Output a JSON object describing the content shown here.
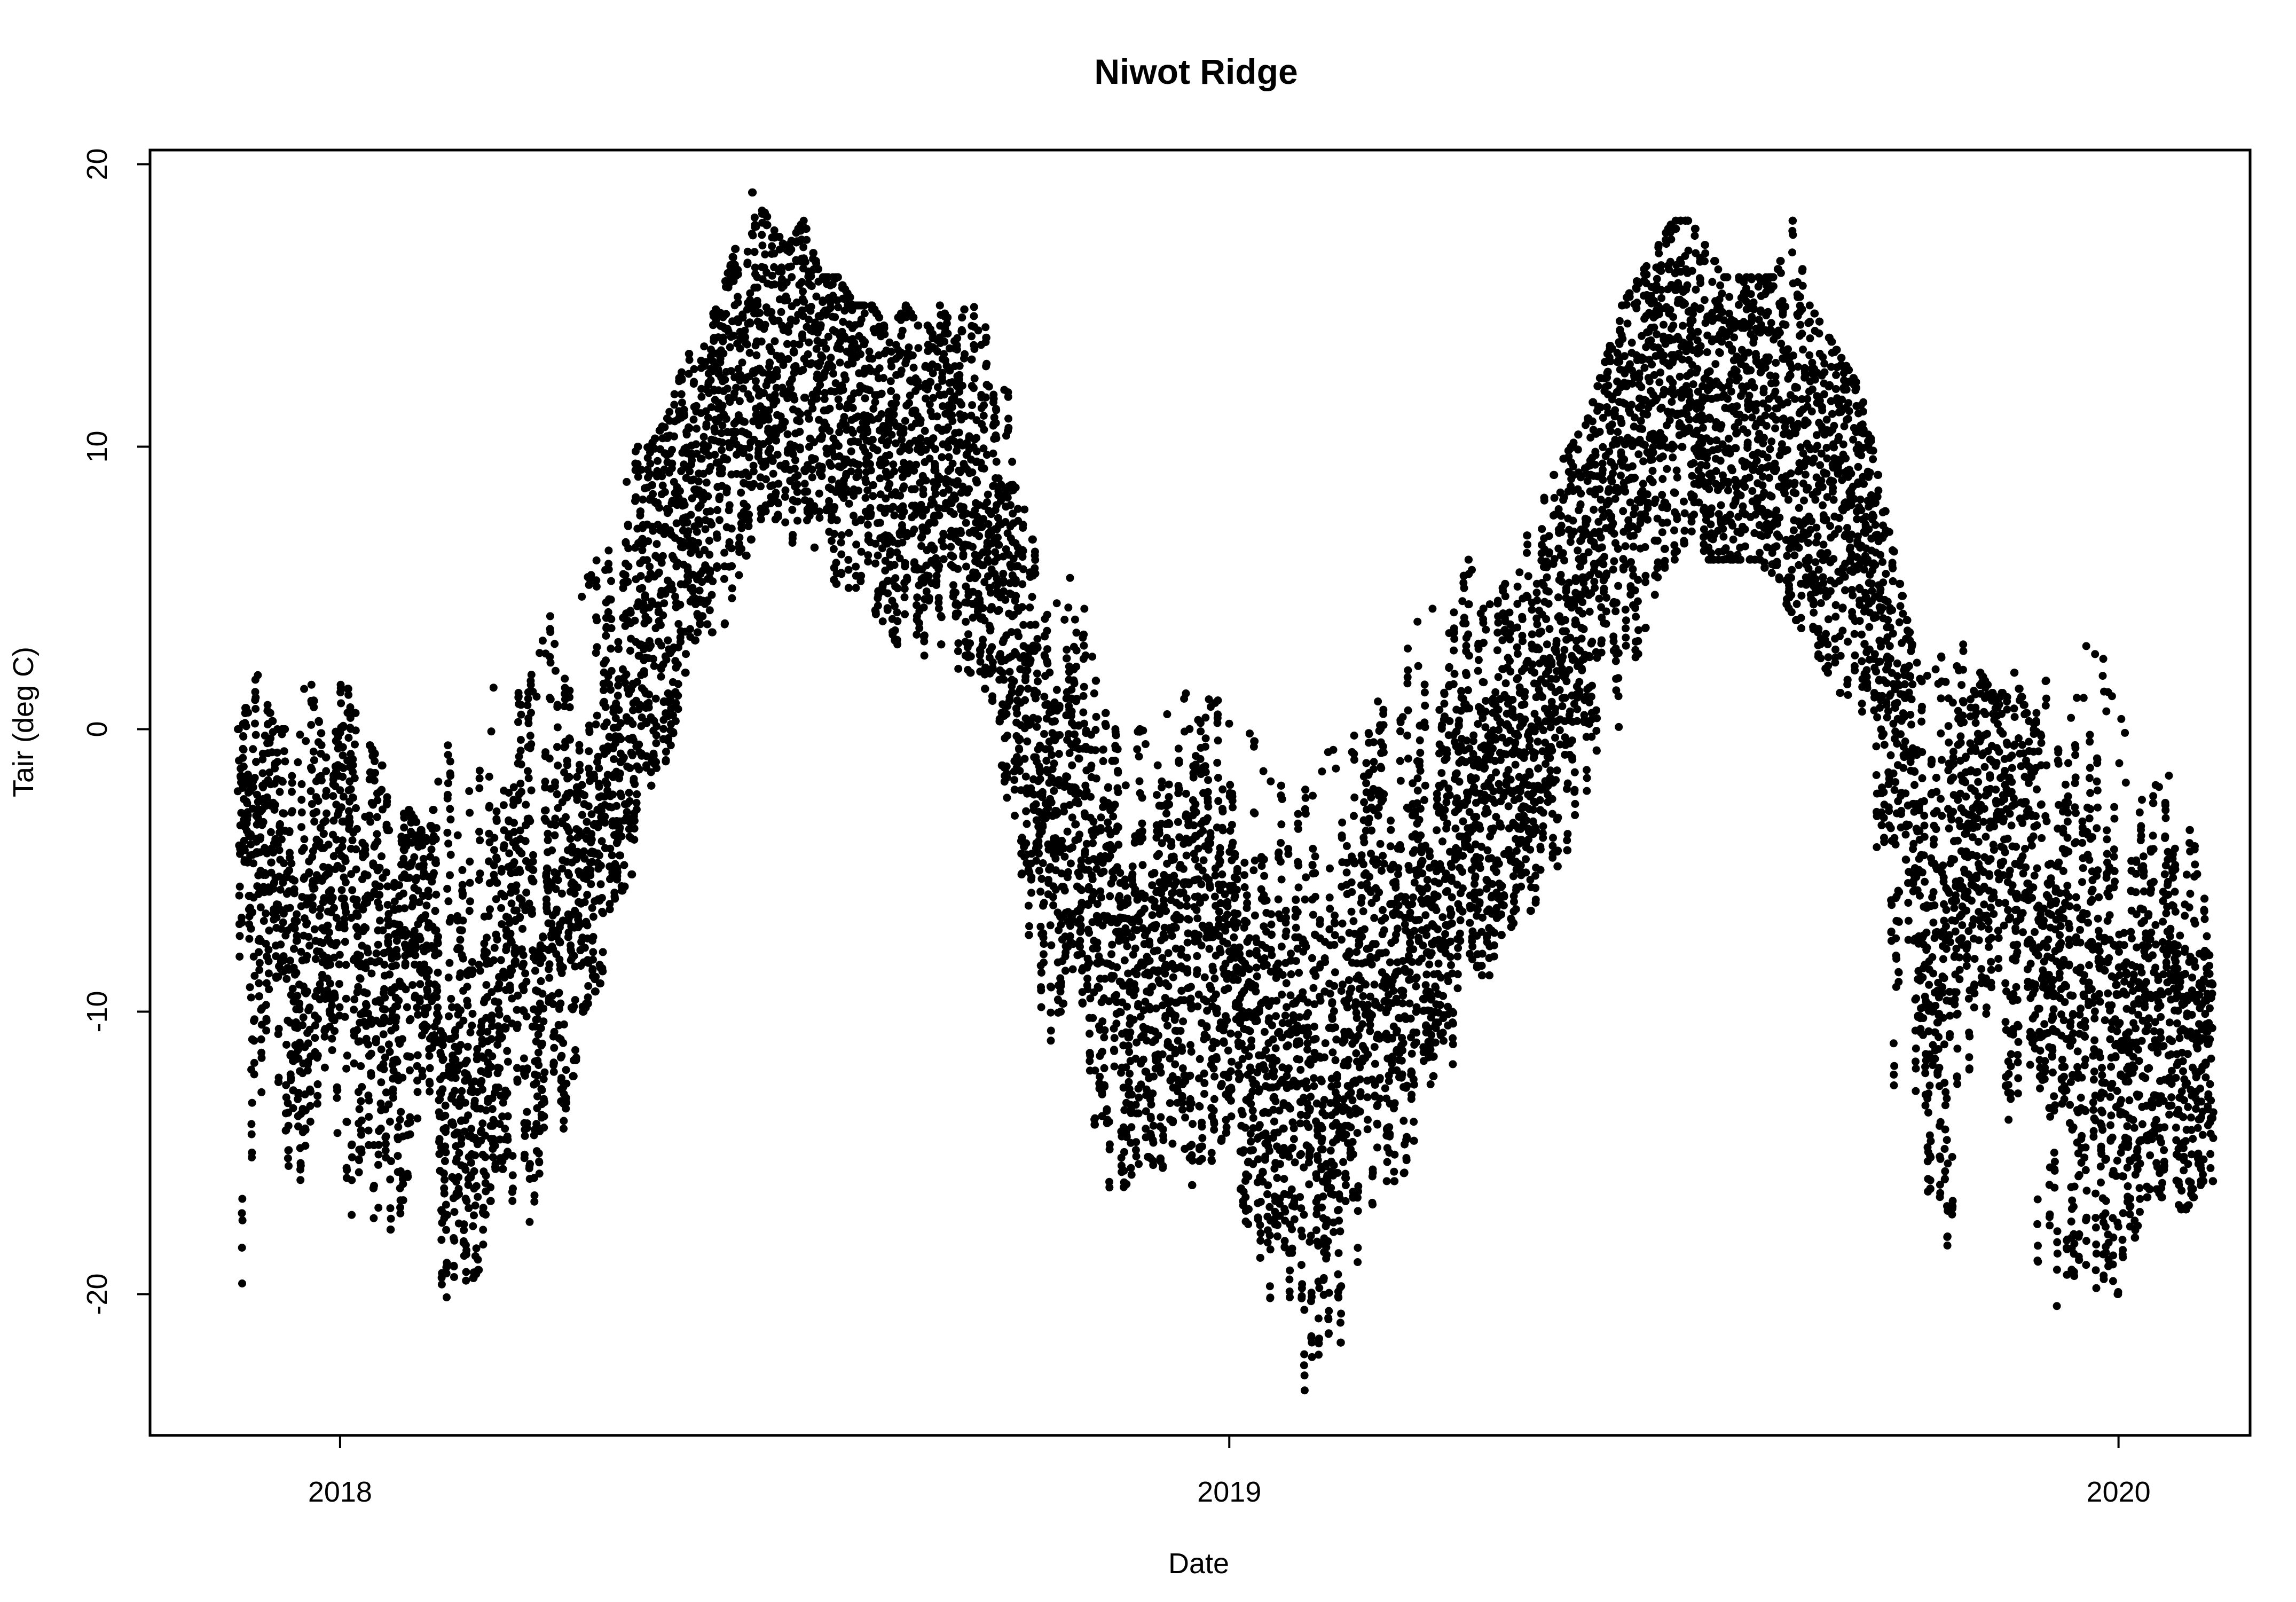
{
  "chart_data": {
    "type": "scatter",
    "title": "Niwot Ridge",
    "xlabel": "Date",
    "ylabel": "Tair (deg C)",
    "x_axis_type": "date",
    "xlim": [
      "2017-10-15",
      "2020-02-24"
    ],
    "ylim": [
      -25,
      20.5
    ],
    "x_ticks": [
      "2018",
      "2019",
      "2020"
    ],
    "y_ticks": [
      "20",
      "10",
      "0",
      "-10",
      "-20"
    ],
    "grid": false,
    "legend": "none",
    "marker": "filled-circle",
    "series": [
      {
        "color": "#000000",
        "x": [
          "2017-11-20",
          "2017-11-28",
          "2017-12-05",
          "2017-12-12",
          "2017-12-19",
          "2017-12-26",
          "2018-01-02",
          "2018-01-09",
          "2018-01-16",
          "2018-01-23",
          "2018-01-30",
          "2018-02-06",
          "2018-02-13",
          "2018-02-20",
          "2018-02-27",
          "2018-03-06",
          "2018-03-13",
          "2018-03-20",
          "2018-03-27",
          "2018-04-03",
          "2018-04-10",
          "2018-04-17",
          "2018-04-24",
          "2018-05-01",
          "2018-05-08",
          "2018-05-15",
          "2018-05-22",
          "2018-05-29",
          "2018-06-05",
          "2018-06-12",
          "2018-06-19",
          "2018-06-26",
          "2018-07-03",
          "2018-07-10",
          "2018-07-17",
          "2018-07-24",
          "2018-07-31",
          "2018-08-07",
          "2018-08-14",
          "2018-08-21",
          "2018-08-28",
          "2018-09-04",
          "2018-09-11",
          "2018-09-18",
          "2018-09-25",
          "2018-10-02",
          "2018-10-09",
          "2018-10-16",
          "2018-10-23",
          "2018-10-30",
          "2018-11-06",
          "2018-11-13",
          "2018-11-20",
          "2018-11-27",
          "2018-12-04",
          "2018-12-11",
          "2018-12-18",
          "2018-12-25",
          "2019-01-01",
          "2019-01-08",
          "2019-01-15",
          "2019-01-22",
          "2019-01-29",
          "2019-02-05",
          "2019-02-12",
          "2019-02-19",
          "2019-02-26",
          "2019-03-05",
          "2019-03-12",
          "2019-03-19",
          "2019-03-26",
          "2019-04-02",
          "2019-04-09",
          "2019-04-16",
          "2019-04-23",
          "2019-04-30",
          "2019-05-07",
          "2019-05-14",
          "2019-05-21",
          "2019-05-28",
          "2019-06-04",
          "2019-06-11",
          "2019-06-18",
          "2019-06-25",
          "2019-07-02",
          "2019-07-09",
          "2019-07-16",
          "2019-07-23",
          "2019-07-30",
          "2019-08-06",
          "2019-08-13",
          "2019-08-20",
          "2019-08-27",
          "2019-09-03",
          "2019-09-10",
          "2019-09-17",
          "2019-09-24",
          "2019-10-01",
          "2019-10-08",
          "2019-10-15",
          "2019-10-22",
          "2019-10-29",
          "2019-11-05",
          "2019-11-12",
          "2019-11-19",
          "2019-11-26",
          "2019-12-03",
          "2019-12-10",
          "2019-12-17",
          "2019-12-24",
          "2019-12-31",
          "2020-01-07",
          "2020-01-14",
          "2020-01-21",
          "2020-01-28",
          "2020-02-04",
          "2020-02-08"
        ],
        "y_mid": [
          -3,
          -5,
          -4,
          -9,
          -6,
          -8,
          -5,
          -7,
          -8,
          -10,
          -7,
          -9,
          -11,
          -12,
          -13,
          -9,
          -7,
          -8,
          -6,
          -5,
          -6,
          -3,
          -1,
          1,
          3,
          5,
          7,
          9,
          10,
          12,
          12,
          13,
          13,
          14,
          13,
          12,
          12,
          11,
          10,
          10,
          9,
          10,
          9,
          8,
          7,
          4,
          1,
          -3,
          -5,
          -3,
          -7,
          -8,
          -9,
          -9,
          -10,
          -8,
          -9,
          -7,
          -8,
          -9,
          -10,
          -11,
          -12,
          -14,
          -15,
          -12,
          -10,
          -9,
          -8,
          -7,
          -5,
          -4,
          -2,
          -2,
          -1,
          -1,
          0,
          2,
          3,
          5,
          7,
          9,
          11,
          12,
          13,
          13,
          12,
          12,
          11,
          11,
          11,
          10,
          10,
          9,
          8,
          6,
          4,
          1,
          -3,
          -6,
          -8,
          -6,
          -4,
          -3,
          -5,
          -5,
          -8,
          -8,
          -10,
          -11,
          -11,
          -12,
          -10,
          -10,
          -12,
          -11,
          -12
        ],
        "y_low": [
          -20,
          -17,
          -12,
          -17,
          -20,
          -14,
          -16,
          -19,
          -17,
          -18,
          -15,
          -21,
          -22,
          -20,
          -19,
          -15,
          -17,
          -18,
          -15,
          -14,
          -10,
          -9,
          -6,
          -5,
          -2,
          -1,
          2,
          4,
          3,
          5,
          7,
          8,
          6,
          7,
          6,
          5,
          5,
          4,
          3,
          3,
          2,
          3,
          2,
          2,
          1,
          -3,
          -6,
          -15,
          -10,
          -8,
          -14,
          -17,
          -16,
          -15,
          -16,
          -14,
          -17,
          -15,
          -14,
          -18,
          -19,
          -23,
          -24,
          -22,
          -23,
          -20,
          -18,
          -16,
          -16,
          -14,
          -12,
          -13,
          -8,
          -9,
          -7,
          -7,
          -6,
          -5,
          -4,
          -2,
          -1,
          0,
          3,
          5,
          6,
          7,
          6,
          6,
          6,
          6,
          5,
          4,
          3,
          2,
          1,
          -2,
          -8,
          -15,
          -17,
          -21,
          -19,
          -14,
          -12,
          -13,
          -15,
          -19,
          -20,
          -21,
          -21,
          -20,
          -20,
          -18,
          -16,
          -17,
          -17,
          -16,
          -16
        ],
        "y_high": [
          0,
          2,
          0,
          0,
          2,
          -1,
          2,
          0,
          -1,
          -2,
          -3,
          -4,
          0,
          -4,
          1,
          2,
          1,
          2,
          4,
          4,
          5,
          7,
          8,
          10,
          10,
          11,
          13,
          14,
          15,
          17,
          19,
          18,
          17,
          18,
          16,
          16,
          15,
          15,
          14,
          15,
          14,
          15,
          14,
          16,
          13,
          12,
          8,
          5,
          5,
          6,
          2,
          0,
          0,
          0,
          0,
          2,
          1,
          2,
          0,
          0,
          -1,
          -2,
          -3,
          -1,
          0,
          1,
          1,
          1,
          2,
          4,
          5,
          4,
          6,
          5,
          5,
          6,
          8,
          9,
          10,
          11,
          13,
          15,
          16,
          17,
          18,
          18,
          17,
          16,
          16,
          16,
          16,
          18,
          15,
          14,
          13,
          12,
          9,
          6,
          3,
          4,
          2,
          3,
          2,
          1,
          2,
          0,
          2,
          0,
          3,
          3,
          1,
          -1,
          -2,
          0,
          -3,
          -5,
          -9
        ]
      }
    ]
  }
}
